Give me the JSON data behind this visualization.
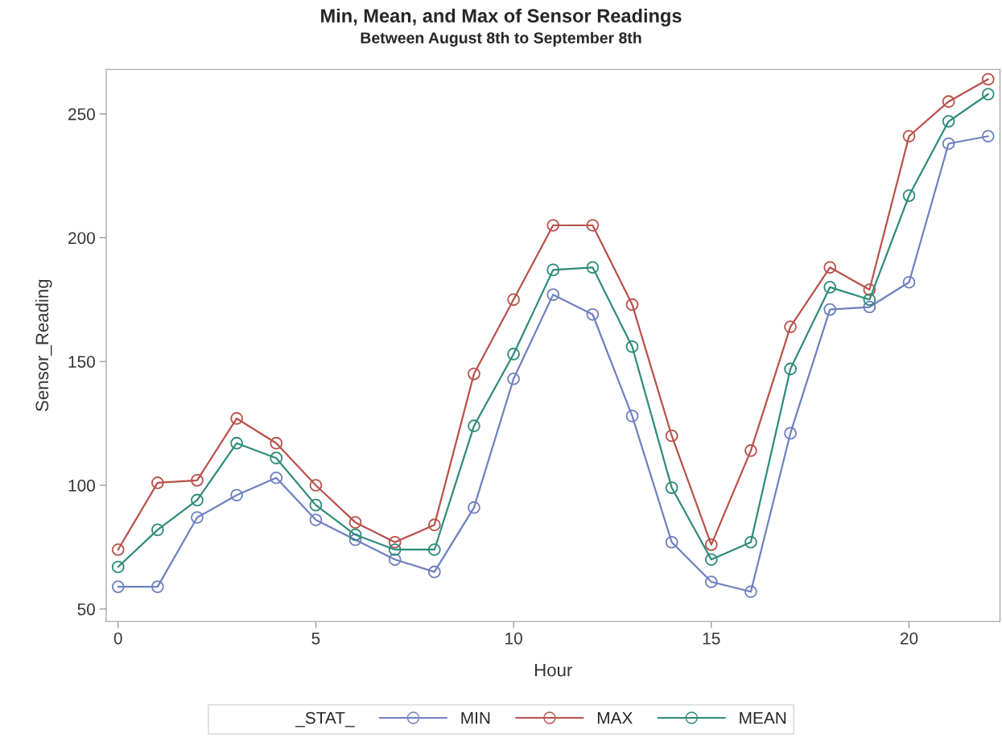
{
  "chart_data": {
    "type": "line",
    "title": "Min, Mean, and Max of Sensor Readings",
    "subtitle": "Between August 8th to September 8th",
    "xlabel": "Hour",
    "ylabel": "Sensor_Reading",
    "legend_title": "_STAT_",
    "x": [
      0,
      1,
      2,
      3,
      4,
      5,
      6,
      7,
      8,
      9,
      10,
      11,
      12,
      13,
      14,
      15,
      16,
      17,
      18,
      19,
      20,
      21,
      22
    ],
    "series": [
      {
        "name": "MIN",
        "color": "#6f7fbf",
        "values": [
          59,
          59,
          87,
          96,
          103,
          86,
          78,
          70,
          65,
          91,
          143,
          177,
          169,
          128,
          77,
          61,
          57,
          121,
          171,
          172,
          182,
          238,
          241
        ]
      },
      {
        "name": "MAX",
        "color": "#b8514a",
        "values": [
          74,
          101,
          102,
          127,
          117,
          100,
          85,
          77,
          84,
          145,
          175,
          205,
          205,
          173,
          120,
          76,
          114,
          164,
          188,
          179,
          241,
          255,
          264
        ]
      },
      {
        "name": "MEAN",
        "color": "#2e8b79",
        "values": [
          67,
          82,
          94,
          117,
          111,
          92,
          80,
          74,
          74,
          124,
          153,
          187,
          188,
          156,
          99,
          70,
          77,
          147,
          180,
          175,
          217,
          247,
          258
        ]
      }
    ],
    "xlim": [
      -0.3,
      22.3
    ],
    "xticks": [
      0,
      5,
      10,
      15,
      20
    ],
    "ylim": [
      45,
      268
    ],
    "yticks": [
      50,
      100,
      150,
      200,
      250
    ],
    "grid": false,
    "legend": "bottom",
    "marker": "circle",
    "line_style": "solid"
  }
}
